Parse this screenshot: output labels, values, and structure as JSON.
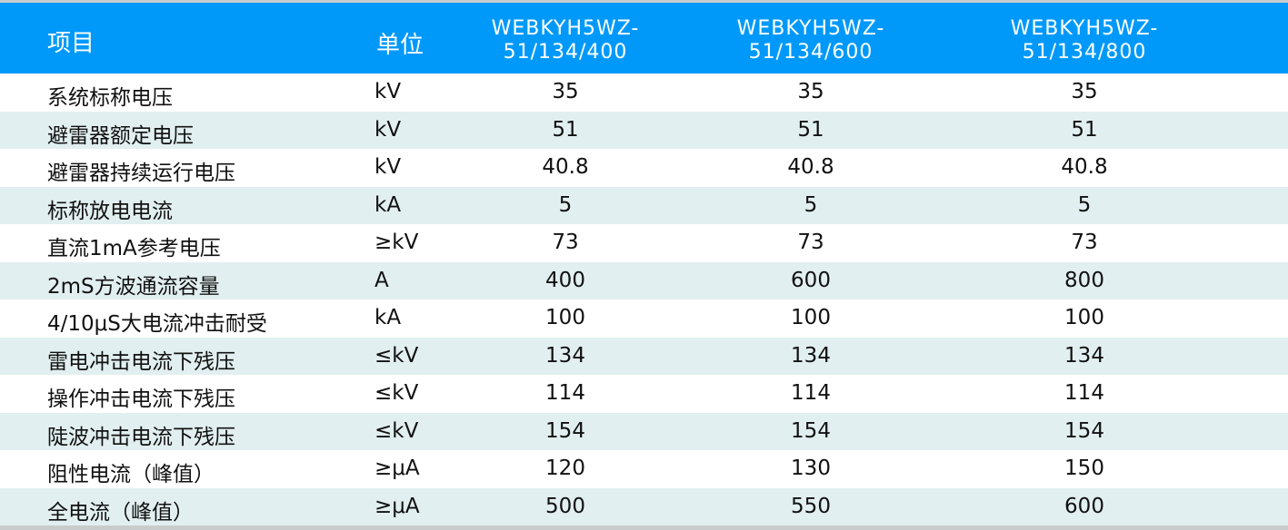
{
  "header": {
    "item": "项目",
    "unit": "单位",
    "models": [
      [
        "WEBKYH5WZ-",
        "51/134/400"
      ],
      [
        "WEBKYH5WZ-",
        "51/134/600"
      ],
      [
        "WEBKYH5WZ-",
        "51/134/800"
      ]
    ]
  },
  "rows": [
    {
      "item": "系统标称电压",
      "unit": "kV",
      "values": [
        "35",
        "35",
        "35"
      ]
    },
    {
      "item": "避雷器额定电压",
      "unit": "kV",
      "values": [
        "51",
        "51",
        "51"
      ]
    },
    {
      "item": "避雷器持续运行电压",
      "unit": "kV",
      "values": [
        "40.8",
        "40.8",
        "40.8"
      ]
    },
    {
      "item": "标称放电电流",
      "unit": "kA",
      "values": [
        "5",
        "5",
        "5"
      ]
    },
    {
      "item": "直流1mA参考电压",
      "unit": "≥kV",
      "values": [
        "73",
        "73",
        "73"
      ]
    },
    {
      "item": "2mS方波通流容量",
      "unit": "A",
      "values": [
        "400",
        "600",
        "800"
      ]
    },
    {
      "item": "4/10μS大电流冲击耐受",
      "unit": "kA",
      "values": [
        "100",
        "100",
        "100"
      ]
    },
    {
      "item": "雷电冲击电流下残压",
      "unit": "≤kV",
      "values": [
        "134",
        "134",
        "134"
      ]
    },
    {
      "item": "操作冲击电流下残压",
      "unit": "≤kV",
      "values": [
        "114",
        "114",
        "114"
      ]
    },
    {
      "item": "陡波冲击电流下残压",
      "unit": "≤kV",
      "values": [
        "154",
        "154",
        "154"
      ]
    },
    {
      "item": "阻性电流（峰值）",
      "unit": "≥μA",
      "values": [
        "120",
        "130",
        "150"
      ]
    },
    {
      "item": "全电流（峰值）",
      "unit": "≥μA",
      "values": [
        "500",
        "550",
        "600"
      ]
    }
  ],
  "colors": {
    "header": "#0099fa",
    "stripe": "#e2eff0",
    "frame": "#c9cccc"
  }
}
